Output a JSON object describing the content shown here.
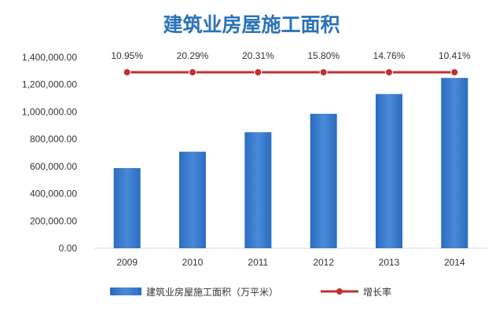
{
  "chart_data": {
    "type": "bar",
    "title": "建筑业房屋施工面积",
    "categories": [
      "2009",
      "2010",
      "2011",
      "2012",
      "2013",
      "2014"
    ],
    "series": [
      {
        "name": "建筑业房屋施工面积（万平米）",
        "type": "bar",
        "values": [
          588000,
          708000,
          851000,
          986000,
          1131000,
          1249000
        ]
      },
      {
        "name": "增长率",
        "type": "line",
        "values": [
          10.95,
          20.29,
          20.31,
          15.8,
          14.76,
          10.41
        ],
        "labels": [
          "10.95%",
          "20.29%",
          "20.31%",
          "15.80%",
          "14.76%",
          "10.41%"
        ]
      }
    ],
    "y_ticks": [
      "0.00",
      "200,000.00",
      "400,000.00",
      "600,000.00",
      "800,000.00",
      "1,000,000.00",
      "1,200,000.00",
      "1,400,000.00"
    ],
    "ylim": [
      0,
      1400000
    ],
    "grid": false,
    "legend_position": "bottom",
    "colors": {
      "bar": "#2e75c8",
      "bar_light": "#4f8fd9",
      "line": "#c0312f",
      "title": "#2b73b9"
    }
  }
}
